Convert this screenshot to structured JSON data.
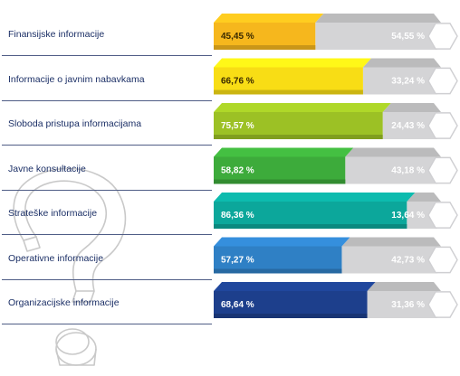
{
  "chart_data": {
    "type": "bar",
    "orientation": "horizontal",
    "stacked": true,
    "categories": [
      "Finansijske informacije",
      "Informacije o javnim nabavkama",
      "Sloboda pristupa informacijama",
      "Javne konsultacije",
      "Strateške informacije",
      "Operativne informacije",
      "Organizacijske informacije"
    ],
    "series": [
      {
        "values": [
          45.45,
          66.76,
          75.57,
          58.82,
          86.36,
          57.27,
          68.64
        ],
        "labels": [
          "45,45 %",
          "66,76 %",
          "75,57 %",
          "58,82 %",
          "86,36 %",
          "57,27 %",
          "68,64 %"
        ],
        "colors": [
          "#f6b71d",
          "#f8dd15",
          "#9cc125",
          "#3dab3b",
          "#0ca79b",
          "#2f80c5",
          "#1d3f8c"
        ]
      },
      {
        "values": [
          54.55,
          33.24,
          24.43,
          43.18,
          13.64,
          42.73,
          31.36
        ],
        "labels": [
          "54,55 %",
          "33,24 %",
          "24,43 %",
          "43,18 %",
          "13,64 %",
          "42,73 %",
          "31,36 %"
        ],
        "color": "#d4d4d6"
      }
    ],
    "xlim": [
      0,
      100
    ]
  }
}
